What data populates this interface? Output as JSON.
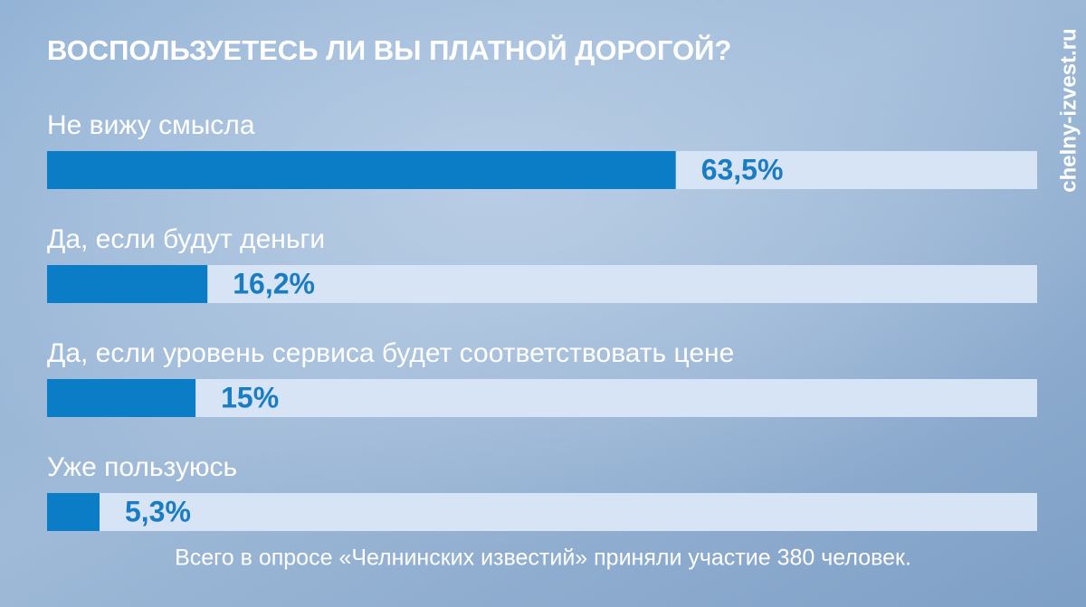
{
  "chart_data": {
    "type": "bar",
    "orientation": "horizontal",
    "title": "ВОСПОЛЬЗУЕТЕСЬ ЛИ ВЫ ПЛАТНОЙ ДОРОГОЙ?",
    "categories": [
      "Не вижу смысла",
      "Да, если будут деньги",
      "Да, если уровень сервиса будет соответствовать цене",
      "Уже пользуюсь"
    ],
    "values": [
      63.5,
      16.2,
      15,
      5.3
    ],
    "value_labels": [
      "63,5%",
      "16,2%",
      "15%",
      "5,3%"
    ],
    "color": "#0b7cc6",
    "track_color": "#d6e4f5",
    "xlim": [
      0,
      100
    ],
    "note": "Всего в опросе  «Челнинских известий» приняли участие 380 человек.",
    "watermark": "chelny-izvest.ru"
  }
}
